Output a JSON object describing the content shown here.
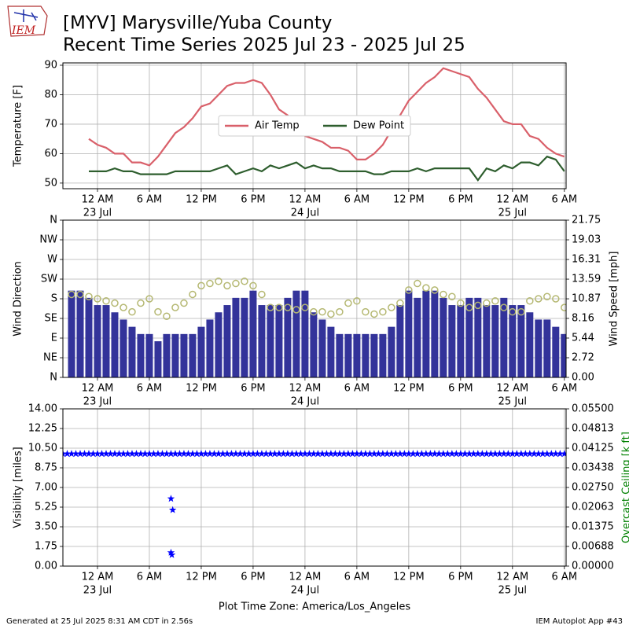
{
  "header": {
    "logo": "IEM",
    "title": "[MYV] Marysville/Yuba County",
    "subtitle": "Recent Time Series 2025 Jul 23 - 2025 Jul 25"
  },
  "footer": {
    "left": "Generated at 25 Jul 2025 8:31 AM CDT in 2.56s",
    "right": "IEM Autoplot App #43"
  },
  "chart_data": [
    {
      "type": "line",
      "ylabel": "Temperature [F]",
      "xlim": [
        -4,
        54.2
      ],
      "ylim": [
        48.1,
        90.8
      ],
      "yticks": [
        50,
        60,
        70,
        80,
        90
      ],
      "grid": true,
      "legend": "center",
      "xticks": [
        {
          "value": 0,
          "label": "12 AM"
        },
        {
          "value": 6,
          "label": "6 AM"
        },
        {
          "value": 12,
          "label": "12 PM"
        },
        {
          "value": 18,
          "label": "6 PM"
        },
        {
          "value": 24,
          "label": "12 AM"
        },
        {
          "value": 30,
          "label": "6 AM"
        },
        {
          "value": 36,
          "label": "12 PM"
        },
        {
          "value": 42,
          "label": "6 PM"
        },
        {
          "value": 48,
          "label": "12 AM"
        },
        {
          "value": 54,
          "label": "6 AM"
        }
      ],
      "xdates": [
        {
          "value": 0,
          "label": "23 Jul"
        },
        {
          "value": 24,
          "label": "24 Jul"
        },
        {
          "value": 48,
          "label": "25 Jul"
        }
      ],
      "x": [
        -1,
        0,
        1,
        2,
        3,
        4,
        5,
        6,
        7,
        8,
        9,
        10,
        11,
        12,
        13,
        14,
        15,
        16,
        17,
        18,
        19,
        20,
        21,
        22,
        23,
        24,
        25,
        26,
        27,
        28,
        29,
        30,
        31,
        32,
        33,
        34,
        35,
        36,
        37,
        38,
        39,
        40,
        41,
        42,
        43,
        44,
        45,
        46,
        47,
        48,
        49,
        50,
        51,
        52,
        53,
        54
      ],
      "series": [
        {
          "name": "Air Temp",
          "color": "#d9606a",
          "marker": "line",
          "values": [
            65,
            63,
            62,
            60,
            60,
            57,
            57,
            56,
            59,
            63,
            67,
            69,
            72,
            76,
            77,
            80,
            83,
            84,
            84,
            85,
            84,
            80,
            75,
            73,
            68,
            66,
            65,
            64,
            62,
            62,
            61,
            58,
            58,
            60,
            63,
            68,
            73,
            78,
            81,
            84,
            86,
            89,
            88,
            87,
            86,
            82,
            79,
            75,
            71,
            70,
            70,
            66,
            65,
            62,
            60,
            59
          ]
        },
        {
          "name": "Dew Point",
          "color": "#2e5e2e",
          "marker": "line",
          "values": [
            54,
            54,
            54,
            55,
            54,
            54,
            53,
            53,
            53,
            53,
            54,
            54,
            54,
            54,
            54,
            55,
            56,
            53,
            54,
            55,
            54,
            56,
            55,
            56,
            57,
            55,
            56,
            55,
            55,
            54,
            54,
            54,
            54,
            53,
            53,
            54,
            54,
            54,
            55,
            54,
            55,
            55,
            55,
            55,
            55,
            51,
            55,
            54,
            56,
            55,
            57,
            57,
            56,
            59,
            58,
            54
          ]
        }
      ]
    },
    {
      "type": "bar",
      "ylabel": "Wind Direction",
      "y2label": "Wind Speed [mph]",
      "xlim": [
        -4,
        54.2
      ],
      "ylim": [
        0,
        360
      ],
      "y2lim": [
        0,
        21.75
      ],
      "grid": true,
      "yticks": [
        {
          "value": 0,
          "label": "N"
        },
        {
          "value": 45,
          "label": "NE"
        },
        {
          "value": 90,
          "label": "E"
        },
        {
          "value": 135,
          "label": "SE"
        },
        {
          "value": 180,
          "label": "S"
        },
        {
          "value": 225,
          "label": "SW"
        },
        {
          "value": 270,
          "label": "W"
        },
        {
          "value": 315,
          "label": "NW"
        },
        {
          "value": 360,
          "label": "N"
        }
      ],
      "y2ticks": [
        {
          "value": 0,
          "label": "0.00"
        },
        2.72,
        5.44,
        8.16,
        10.87,
        13.59,
        16.31,
        19.03,
        21.75
      ],
      "xticks": [
        {
          "value": 0,
          "label": "12 AM"
        },
        {
          "value": 6,
          "label": "6 AM"
        },
        {
          "value": 12,
          "label": "12 PM"
        },
        {
          "value": 18,
          "label": "6 PM"
        },
        {
          "value": 24,
          "label": "12 AM"
        },
        {
          "value": 30,
          "label": "6 AM"
        },
        {
          "value": 36,
          "label": "12 PM"
        },
        {
          "value": 42,
          "label": "6 PM"
        },
        {
          "value": 48,
          "label": "12 AM"
        },
        {
          "value": 54,
          "label": "6 AM"
        }
      ],
      "xdates": [
        {
          "value": 0,
          "label": "23 Jul"
        },
        {
          "value": 24,
          "label": "24 Jul"
        },
        {
          "value": 48,
          "label": "25 Jul"
        }
      ],
      "x": [
        -3,
        -2,
        -1,
        0,
        1,
        2,
        3,
        4,
        5,
        6,
        7,
        8,
        9,
        10,
        11,
        12,
        13,
        14,
        15,
        16,
        17,
        18,
        19,
        20,
        21,
        22,
        23,
        24,
        25,
        26,
        27,
        28,
        29,
        30,
        31,
        32,
        33,
        34,
        35,
        36,
        37,
        38,
        39,
        40,
        41,
        42,
        43,
        44,
        45,
        46,
        47,
        48,
        49,
        50,
        51,
        52,
        53,
        54
      ],
      "series": [
        {
          "color": "#33339a",
          "marker": "bar",
          "axis": "y2",
          "values": [
            12,
            12,
            11,
            10,
            10,
            9,
            8,
            7,
            6,
            6,
            5,
            6,
            6,
            6,
            6,
            7,
            8,
            9,
            10,
            11,
            11,
            12,
            10,
            10,
            10,
            11,
            12,
            12,
            9,
            8,
            7,
            6,
            6,
            6,
            6,
            6,
            6,
            7,
            10,
            12,
            11,
            12,
            12,
            11,
            10,
            10,
            11,
            11,
            10,
            10,
            11,
            10,
            10,
            9,
            8,
            8,
            7,
            6
          ]
        },
        {
          "color": "#b5b872",
          "marker": "circle",
          "values": [
            190,
            190,
            185,
            180,
            175,
            170,
            160,
            150,
            170,
            180,
            150,
            140,
            160,
            170,
            190,
            210,
            215,
            220,
            210,
            215,
            220,
            210,
            190,
            160,
            160,
            160,
            155,
            160,
            150,
            150,
            145,
            150,
            170,
            175,
            150,
            145,
            150,
            160,
            170,
            200,
            215,
            205,
            200,
            190,
            185,
            170,
            160,
            165,
            170,
            175,
            160,
            150,
            150,
            175,
            180,
            185,
            180,
            160
          ]
        }
      ]
    },
    {
      "type": "scatter",
      "ylabel": "Visibility [miles]",
      "y2label": "Overcast Ceiling [k ft]",
      "xlabel": "Plot Time Zone: America/Los_Angeles",
      "xlim": [
        -4,
        54.2
      ],
      "ylim": [
        0,
        14
      ],
      "y2lim": [
        0,
        0.055
      ],
      "grid": true,
      "yticks": [
        {
          "value": 0,
          "label": "0.00"
        },
        1.75,
        {
          "value": 3.5,
          "label": "3.50"
        },
        5.25,
        {
          "value": 7,
          "label": "7.00"
        },
        8.75,
        {
          "value": 10.5,
          "label": "10.50"
        },
        12.25,
        {
          "value": 14,
          "label": "14.00"
        }
      ],
      "y2ticks": [
        {
          "value": 0,
          "label": "0.00000"
        },
        0.00688,
        0.01375,
        0.02063,
        {
          "value": 0.0275,
          "label": "0.02750"
        },
        0.03438,
        0.04125,
        0.04813,
        {
          "value": 0.055,
          "label": "0.05500"
        }
      ],
      "xticks": [
        {
          "value": 0,
          "label": "12 AM"
        },
        {
          "value": 6,
          "label": "6 AM"
        },
        {
          "value": 12,
          "label": "12 PM"
        },
        {
          "value": 18,
          "label": "6 PM"
        },
        {
          "value": 24,
          "label": "12 AM"
        },
        {
          "value": 30,
          "label": "6 AM"
        },
        {
          "value": 36,
          "label": "12 PM"
        },
        {
          "value": 42,
          "label": "6 PM"
        },
        {
          "value": 48,
          "label": "12 AM"
        },
        {
          "value": 54,
          "label": "6 AM"
        }
      ],
      "xdates": [
        {
          "value": 0,
          "label": "23 Jul"
        },
        {
          "value": 24,
          "label": "24 Jul"
        },
        {
          "value": 48,
          "label": "25 Jul"
        }
      ],
      "series": [
        {
          "color": "#0000ff",
          "marker": "star",
          "x": [
            -4,
            -3.5,
            -3,
            -2.5,
            -2,
            -1.5,
            -1,
            -0.5,
            0,
            0.5,
            1,
            1.5,
            2,
            2.5,
            3,
            3.5,
            4,
            4.5,
            5,
            5.5,
            6,
            6.5,
            7,
            7.5,
            8,
            8.5,
            9,
            9.5,
            10,
            10.5,
            11,
            11.5,
            12,
            12.5,
            13,
            13.5,
            14,
            14.5,
            15,
            15.5,
            16,
            16.5,
            17,
            17.5,
            18,
            18.5,
            19,
            19.5,
            20,
            20.5,
            21,
            21.5,
            22,
            22.5,
            23,
            23.5,
            24,
            24.5,
            25,
            25.5,
            26,
            26.5,
            27,
            27.5,
            28,
            28.5,
            29,
            29.5,
            30,
            30.5,
            31,
            31.5,
            32,
            32.5,
            33,
            33.5,
            34,
            34.5,
            35,
            35.5,
            36,
            36.5,
            37,
            37.5,
            38,
            38.5,
            39,
            39.5,
            40,
            40.5,
            41,
            41.5,
            42,
            42.5,
            43,
            43.5,
            44,
            44.5,
            45,
            45.5,
            46,
            46.5,
            47,
            47.5,
            48,
            48.5,
            49,
            49.5,
            50,
            50.5,
            51,
            51.5,
            52,
            52.5,
            53,
            53.5,
            54,
            8.5,
            8.7,
            8.5,
            8.6
          ],
          "values": [
            10,
            10,
            10,
            10,
            10,
            10,
            10,
            10,
            10,
            10,
            10,
            10,
            10,
            10,
            10,
            10,
            10,
            10,
            10,
            10,
            10,
            10,
            10,
            10,
            10,
            10,
            10,
            10,
            10,
            10,
            10,
            10,
            10,
            10,
            10,
            10,
            10,
            10,
            10,
            10,
            10,
            10,
            10,
            10,
            10,
            10,
            10,
            10,
            10,
            10,
            10,
            10,
            10,
            10,
            10,
            10,
            10,
            10,
            10,
            10,
            10,
            10,
            10,
            10,
            10,
            10,
            10,
            10,
            10,
            10,
            10,
            10,
            10,
            10,
            10,
            10,
            10,
            10,
            10,
            10,
            10,
            10,
            10,
            10,
            10,
            10,
            10,
            10,
            10,
            10,
            10,
            10,
            10,
            10,
            10,
            10,
            10,
            10,
            10,
            10,
            10,
            10,
            10,
            10,
            10,
            10,
            10,
            10,
            10,
            10,
            10,
            10,
            10,
            10,
            10,
            10,
            10,
            6,
            5,
            1.2,
            1
          ]
        }
      ]
    }
  ]
}
